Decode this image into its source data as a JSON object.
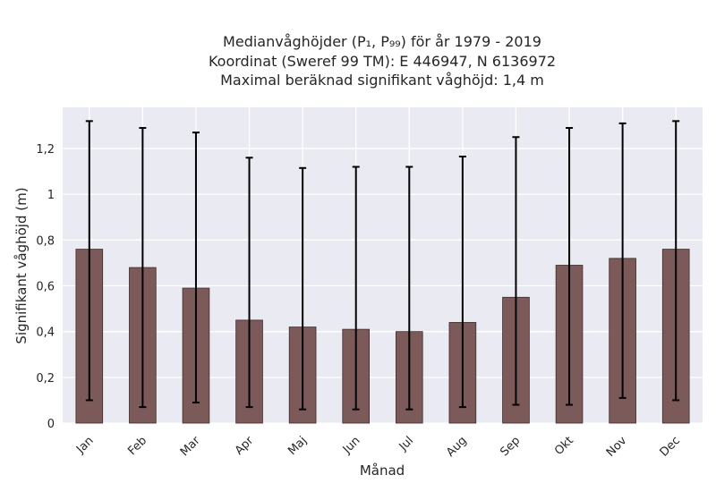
{
  "chart_data": {
    "type": "bar",
    "title_lines": [
      "Medianvåghöjder (P₁, P₉₉) för år 1979 - 2019",
      "Koordinat (Sweref 99 TM): E 446947, N 6136972",
      "Maximal beräknad signifikant våghöjd: 1,4 m"
    ],
    "xlabel": "Månad",
    "ylabel": "Signifikant våghöjd (m)",
    "categories": [
      "Jan",
      "Feb",
      "Mar",
      "Apr",
      "Maj",
      "Jun",
      "Jul",
      "Aug",
      "Sep",
      "Okt",
      "Nov",
      "Dec"
    ],
    "values": [
      0.76,
      0.68,
      0.59,
      0.45,
      0.42,
      0.41,
      0.4,
      0.44,
      0.55,
      0.69,
      0.72,
      0.76
    ],
    "error_low": [
      0.1,
      0.07,
      0.09,
      0.07,
      0.06,
      0.06,
      0.06,
      0.07,
      0.08,
      0.08,
      0.11,
      0.1
    ],
    "error_high": [
      1.32,
      1.29,
      1.27,
      1.16,
      1.115,
      1.12,
      1.12,
      1.165,
      1.25,
      1.29,
      1.31,
      1.32
    ],
    "yticks": [
      0,
      0.2,
      0.4,
      0.6,
      0.8,
      1.0,
      1.2
    ],
    "ytick_labels": [
      "0",
      "0,2",
      "0,4",
      "0,6",
      "0,8",
      "1",
      "1,2"
    ],
    "ylim": [
      0,
      1.38
    ],
    "grid": true,
    "colors": {
      "bar": "#7d5a5a",
      "bar_edge": "#3d2b2b",
      "error": "#000000",
      "plot_bg": "#eaeaf2",
      "grid": "#ffffff"
    }
  }
}
